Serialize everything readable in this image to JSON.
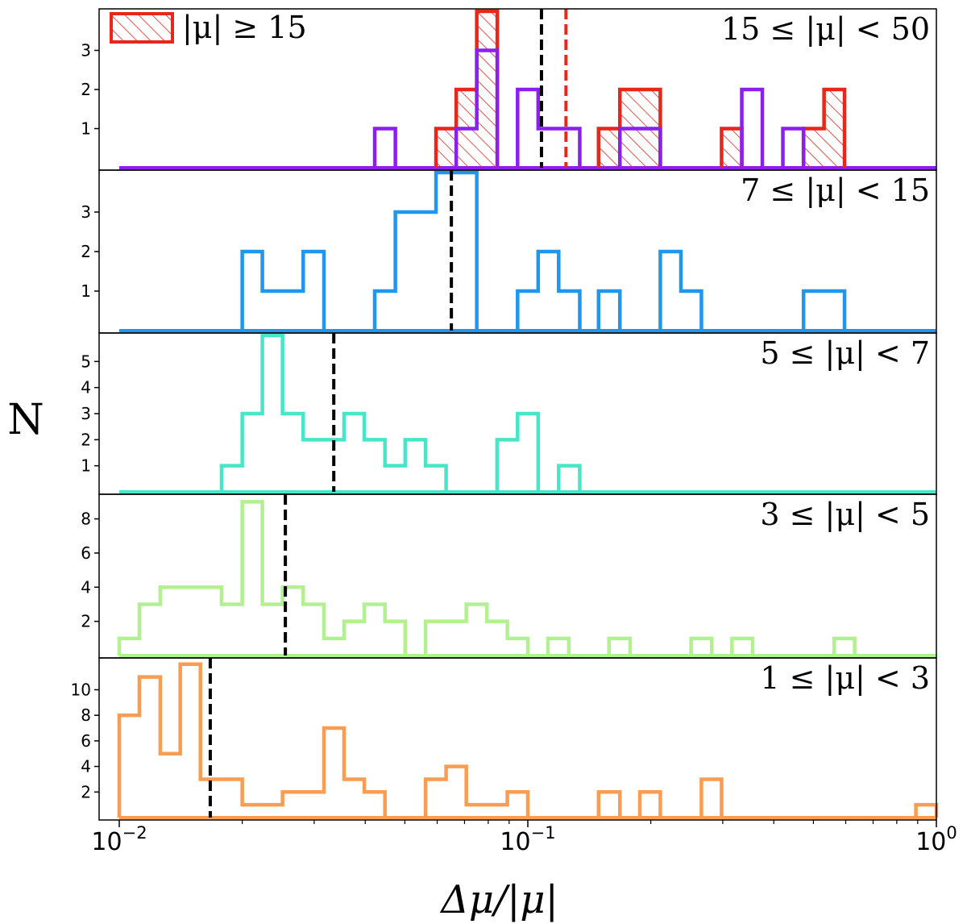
{
  "chart_data": {
    "type": "histogram",
    "x_scale": "log",
    "xlim": [
      0.01,
      1.0
    ],
    "xticks": [
      {
        "base": "10",
        "exp": "−2"
      },
      {
        "base": "10",
        "exp": "−1"
      },
      {
        "base": "10",
        "exp": "0"
      }
    ],
    "xlabel": "Δμ/|μ|",
    "ylabel": "N",
    "legend": {
      "label": "|μ| ≥ 15",
      "color": "#e8261a",
      "hatch": true,
      "position": "top-left"
    },
    "panels": [
      {
        "label": "15 ≤ |μ| < 50",
        "color": "#8b1ff0",
        "ymax": 4.0,
        "yticks": [
          1,
          2,
          3
        ],
        "median": 0.108,
        "series": [
          {
            "name": "15 ≤ |μ| < 50",
            "color": "#8b1ff0",
            "bins": [
              [
                0.0422,
                0.0474,
                1
              ],
              [
                0.0668,
                0.075,
                1
              ],
              [
                0.075,
                0.0842,
                3
              ],
              [
                0.0944,
                0.106,
                2
              ],
              [
                0.106,
                0.119,
                1
              ],
              [
                0.119,
                0.134,
                1
              ],
              [
                0.168,
                0.188,
                1
              ],
              [
                0.188,
                0.211,
                1
              ],
              [
                0.334,
                0.375,
                2
              ],
              [
                0.421,
                0.473,
                1
              ]
            ]
          },
          {
            "name": "|μ| ≥ 15",
            "color": "#e8261a",
            "hatched": true,
            "median": 0.124,
            "bins": [
              [
                0.0596,
                0.0668,
                1
              ],
              [
                0.0668,
                0.075,
                2
              ],
              [
                0.075,
                0.0842,
                4
              ],
              [
                0.149,
                0.168,
                1
              ],
              [
                0.168,
                0.188,
                2
              ],
              [
                0.188,
                0.211,
                2
              ],
              [
                0.298,
                0.334,
                1
              ],
              [
                0.473,
                0.531,
                1
              ],
              [
                0.531,
                0.596,
                2
              ]
            ]
          }
        ]
      },
      {
        "label": "7 ≤ |μ| < 15",
        "color": "#2196ed",
        "ymax": 4.0,
        "yticks": [
          1,
          2,
          3
        ],
        "median": 0.065,
        "series": [
          {
            "name": "7 ≤ |μ| < 15",
            "color": "#2196ed",
            "bins": [
              [
                0.02,
                0.0224,
                2
              ],
              [
                0.0224,
                0.0251,
                1
              ],
              [
                0.0251,
                0.0282,
                1
              ],
              [
                0.0282,
                0.0317,
                2
              ],
              [
                0.0422,
                0.0474,
                1
              ],
              [
                0.0474,
                0.0531,
                3
              ],
              [
                0.0531,
                0.0596,
                3
              ],
              [
                0.0596,
                0.0668,
                4
              ],
              [
                0.0668,
                0.075,
                4
              ],
              [
                0.0944,
                0.106,
                1
              ],
              [
                0.106,
                0.119,
                2
              ],
              [
                0.119,
                0.134,
                1
              ],
              [
                0.149,
                0.168,
                1
              ],
              [
                0.211,
                0.237,
                2
              ],
              [
                0.237,
                0.266,
                1
              ],
              [
                0.473,
                0.531,
                1
              ],
              [
                0.531,
                0.596,
                1
              ]
            ]
          }
        ]
      },
      {
        "label": "5 ≤ |μ| < 7",
        "color": "#47e6c8",
        "ymax": 6.0,
        "yticks": [
          1,
          2,
          3,
          4,
          5
        ],
        "median": 0.0335,
        "series": [
          {
            "name": "5 ≤ |μ| < 7",
            "color": "#47e6c8",
            "bins": [
              [
                0.0178,
                0.02,
                1
              ],
              [
                0.02,
                0.0224,
                3
              ],
              [
                0.0224,
                0.0251,
                6
              ],
              [
                0.0251,
                0.0282,
                3
              ],
              [
                0.0282,
                0.0317,
                2
              ],
              [
                0.0317,
                0.0355,
                2
              ],
              [
                0.0355,
                0.0398,
                3
              ],
              [
                0.0398,
                0.0447,
                2
              ],
              [
                0.0447,
                0.0501,
                1
              ],
              [
                0.0501,
                0.0562,
                2
              ],
              [
                0.0562,
                0.0631,
                1
              ],
              [
                0.0841,
                0.0944,
                2
              ],
              [
                0.0944,
                0.106,
                3
              ],
              [
                0.119,
                0.134,
                1
              ]
            ]
          }
        ]
      },
      {
        "label": "3 ≤ |μ| < 5",
        "color": "#b2f090",
        "ymax": 9.3,
        "yticks": [
          2,
          4,
          6,
          8
        ],
        "median": 0.0255,
        "series": [
          {
            "name": "3 ≤ |μ| < 5",
            "color": "#b2f090",
            "bins": [
              [
                0.01,
                0.0112,
                1
              ],
              [
                0.0112,
                0.0126,
                3
              ],
              [
                0.0126,
                0.0141,
                4
              ],
              [
                0.0141,
                0.0158,
                4
              ],
              [
                0.0158,
                0.0178,
                4
              ],
              [
                0.0178,
                0.02,
                3
              ],
              [
                0.02,
                0.0224,
                9
              ],
              [
                0.0224,
                0.0251,
                3
              ],
              [
                0.0251,
                0.0282,
                4
              ],
              [
                0.0282,
                0.0317,
                3
              ],
              [
                0.0317,
                0.0355,
                1
              ],
              [
                0.0355,
                0.0398,
                2
              ],
              [
                0.0398,
                0.0447,
                3
              ],
              [
                0.0447,
                0.0501,
                2
              ],
              [
                0.0562,
                0.0631,
                2
              ],
              [
                0.0631,
                0.0707,
                2
              ],
              [
                0.0707,
                0.0794,
                3
              ],
              [
                0.0794,
                0.0891,
                2
              ],
              [
                0.0891,
                0.1,
                1
              ],
              [
                0.112,
                0.126,
                1
              ],
              [
                0.158,
                0.178,
                1
              ],
              [
                0.251,
                0.282,
                1
              ],
              [
                0.316,
                0.355,
                1
              ],
              [
                0.562,
                0.631,
                1
              ]
            ]
          }
        ]
      },
      {
        "label": "1 ≤ |μ| < 3",
        "color": "#fa9c52",
        "ymax": 12.3,
        "yticks": [
          2,
          4,
          6,
          8,
          10
        ],
        "median": 0.0167,
        "series": [
          {
            "name": "1 ≤ |μ| < 3",
            "color": "#fa9c52",
            "bins": [
              [
                0.01,
                0.0112,
                8
              ],
              [
                0.0112,
                0.0126,
                11
              ],
              [
                0.0126,
                0.0141,
                5
              ],
              [
                0.0141,
                0.0158,
                12
              ],
              [
                0.0158,
                0.0178,
                3
              ],
              [
                0.0178,
                0.02,
                3
              ],
              [
                0.02,
                0.0224,
                1
              ],
              [
                0.0224,
                0.0251,
                1
              ],
              [
                0.0251,
                0.0282,
                2
              ],
              [
                0.0282,
                0.0317,
                2
              ],
              [
                0.0317,
                0.0355,
                7
              ],
              [
                0.0355,
                0.0398,
                3
              ],
              [
                0.0398,
                0.0447,
                2
              ],
              [
                0.0562,
                0.0631,
                3
              ],
              [
                0.0631,
                0.0707,
                4
              ],
              [
                0.0707,
                0.0794,
                1
              ],
              [
                0.0794,
                0.0891,
                1
              ],
              [
                0.0891,
                0.1,
                2
              ],
              [
                0.149,
                0.168,
                2
              ],
              [
                0.188,
                0.211,
                2
              ],
              [
                0.266,
                0.298,
                3
              ],
              [
                0.891,
                1.0,
                1
              ]
            ]
          }
        ]
      }
    ]
  }
}
